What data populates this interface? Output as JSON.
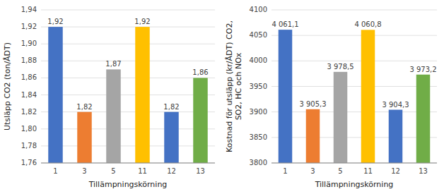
{
  "chart_data": [
    {
      "type": "bar",
      "categories": [
        "1",
        "3",
        "5",
        "11",
        "12",
        "13"
      ],
      "values": [
        1.92,
        1.82,
        1.87,
        1.92,
        1.82,
        1.86
      ],
      "value_labels": [
        "1,92",
        "1,82",
        "1,87",
        "1,92",
        "1,82",
        "1,86"
      ],
      "colors": [
        "#4472C4",
        "#ED7D31",
        "#A5A5A5",
        "#FFC000",
        "#4472C4",
        "#70AD47"
      ],
      "xlabel": "Tillämpningskörning",
      "ylabel": "Utsläpp CO2 (ton/ÅDT)",
      "ylim": [
        1.76,
        1.94
      ],
      "yticks": [
        {
          "value": 1.76,
          "label": "1,76"
        },
        {
          "value": 1.78,
          "label": "1,78"
        },
        {
          "value": 1.8,
          "label": "1,80"
        },
        {
          "value": 1.82,
          "label": "1,82"
        },
        {
          "value": 1.84,
          "label": "1,84"
        },
        {
          "value": 1.86,
          "label": "1,86"
        },
        {
          "value": 1.88,
          "label": "1,88"
        },
        {
          "value": 1.9,
          "label": "1,90"
        },
        {
          "value": 1.92,
          "label": "1,92"
        },
        {
          "value": 1.94,
          "label": "1,94"
        }
      ],
      "grid": true,
      "data_labels": true
    },
    {
      "type": "bar",
      "categories": [
        "1",
        "3",
        "5",
        "11",
        "12",
        "13"
      ],
      "values": [
        4061.1,
        3905.3,
        3978.5,
        4060.8,
        3904.3,
        3973.2
      ],
      "value_labels": [
        "4 061,1",
        "3 905,3",
        "3 978,5",
        "4 060,8",
        "3 904,3",
        "3 973,2"
      ],
      "colors": [
        "#4472C4",
        "#ED7D31",
        "#A5A5A5",
        "#FFC000",
        "#4472C4",
        "#70AD47"
      ],
      "xlabel": "Tillämpningskörning",
      "ylabel": "Kostnad för utsläpp (kr/ÅDT) CO2,\nSO2, HC och NOx",
      "ylim": [
        3800,
        4100
      ],
      "yticks": [
        3800,
        3850,
        3900,
        3950,
        4000,
        4050,
        4100
      ],
      "grid": true,
      "data_labels": true
    }
  ]
}
